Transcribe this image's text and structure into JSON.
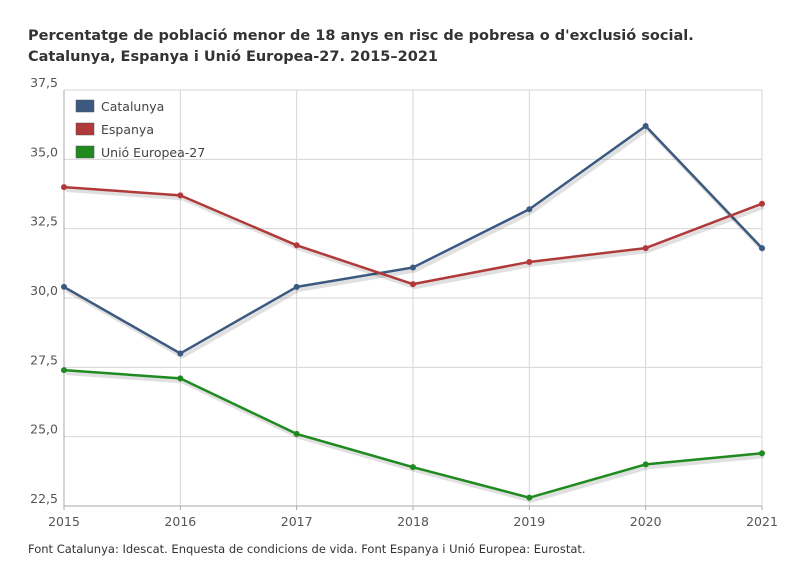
{
  "chart_data": {
    "type": "line",
    "title": "Percentatge de població menor de 18 anys en risc de pobresa o d'exclusió social.",
    "subtitle": "Catalunya, Espanya i Unió Europea-27. 2015–2021",
    "x": [
      "2015",
      "2016",
      "2017",
      "2018",
      "2019",
      "2020",
      "2021"
    ],
    "series": [
      {
        "name": "Catalunya",
        "color": "#3c5a80",
        "values": [
          30.4,
          28.0,
          30.4,
          31.1,
          33.2,
          36.2,
          31.8
        ]
      },
      {
        "name": "Espanya",
        "color": "#b03a3a",
        "values": [
          34.0,
          33.7,
          31.9,
          30.5,
          31.3,
          31.8,
          33.4
        ]
      },
      {
        "name": "Unió Europea-27",
        "color": "#1f8a1f",
        "values": [
          27.4,
          27.1,
          25.1,
          23.9,
          22.8,
          24.0,
          24.4
        ]
      }
    ],
    "ylim": [
      22.5,
      37.5
    ],
    "yticks": [
      "22,5",
      "25,0",
      "27,5",
      "30,0",
      "32,5",
      "35,0",
      "37,5"
    ],
    "ytick_values": [
      22.5,
      25.0,
      27.5,
      30.0,
      32.5,
      35.0,
      37.5
    ],
    "grid": true,
    "legend_position": "top-left",
    "source": "Font Catalunya: Idescat. Enquesta de condicions de vida. Font Espanya i Unió Europea: Eurostat."
  }
}
